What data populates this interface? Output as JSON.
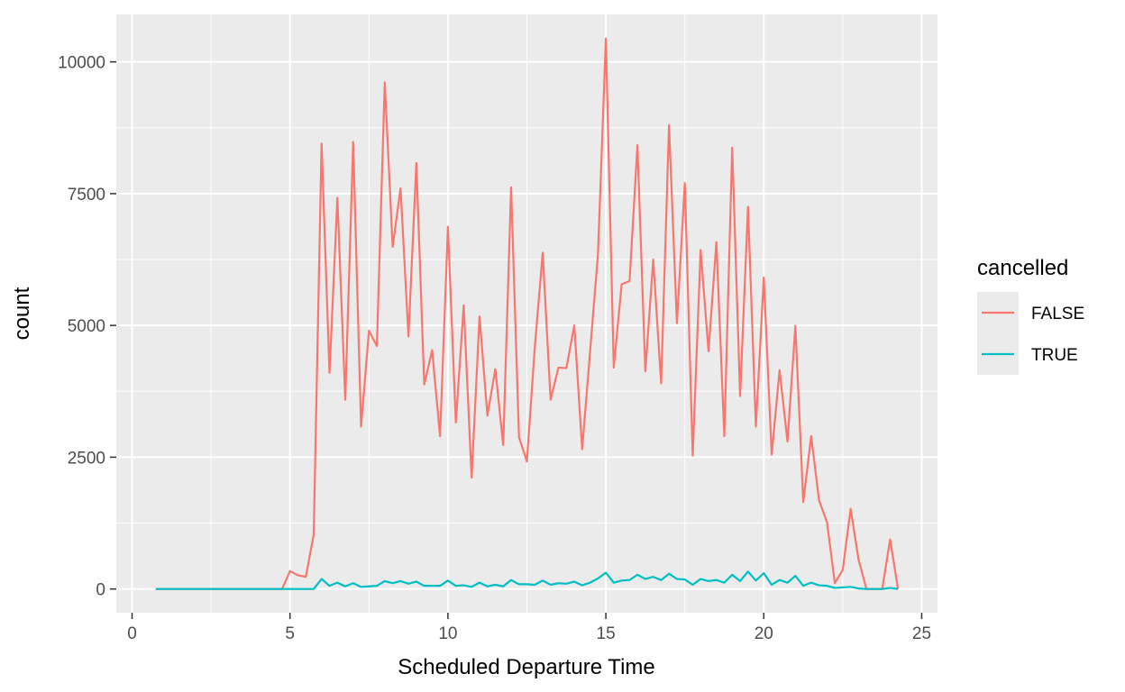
{
  "chart_data": {
    "type": "line",
    "xlabel": "Scheduled Departure Time",
    "ylabel": "count",
    "xlim": [
      -0.5,
      25.5
    ],
    "ylim": [
      -450,
      10900
    ],
    "x_ticks": [
      0,
      5,
      10,
      15,
      20,
      25
    ],
    "x_tick_labels": [
      "0",
      "5",
      "10",
      "15",
      "20",
      "25"
    ],
    "y_ticks": [
      0,
      2500,
      5000,
      7500,
      10000
    ],
    "y_tick_labels": [
      "0",
      "2500",
      "5000",
      "7500",
      "10000"
    ],
    "grid": true,
    "legend": {
      "title": "cancelled",
      "position": "right"
    },
    "series": [
      {
        "name": "FALSE",
        "color": "#F8766D",
        "points": [
          [
            0.75,
            0
          ],
          [
            1.0,
            0
          ],
          [
            1.25,
            0
          ],
          [
            1.5,
            0
          ],
          [
            1.75,
            0
          ],
          [
            2.0,
            0
          ],
          [
            2.25,
            0
          ],
          [
            2.5,
            0
          ],
          [
            2.75,
            0
          ],
          [
            3.0,
            0
          ],
          [
            3.25,
            0
          ],
          [
            3.5,
            0
          ],
          [
            3.75,
            0
          ],
          [
            4.0,
            0
          ],
          [
            4.25,
            0
          ],
          [
            4.5,
            0
          ],
          [
            4.75,
            0
          ],
          [
            5.0,
            340
          ],
          [
            5.25,
            260
          ],
          [
            5.5,
            230
          ],
          [
            5.75,
            1030
          ],
          [
            6.0,
            8450
          ],
          [
            6.25,
            4100
          ],
          [
            6.5,
            7420
          ],
          [
            6.75,
            3590
          ],
          [
            7.0,
            8480
          ],
          [
            7.25,
            3080
          ],
          [
            7.5,
            4900
          ],
          [
            7.75,
            4610
          ],
          [
            8.0,
            9610
          ],
          [
            8.25,
            6490
          ],
          [
            8.5,
            7600
          ],
          [
            8.75,
            4790
          ],
          [
            9.0,
            8080
          ],
          [
            9.25,
            3880
          ],
          [
            9.5,
            4530
          ],
          [
            9.75,
            2900
          ],
          [
            10.0,
            6870
          ],
          [
            10.25,
            3160
          ],
          [
            10.5,
            5380
          ],
          [
            10.75,
            2110
          ],
          [
            11.0,
            5170
          ],
          [
            11.25,
            3290
          ],
          [
            11.5,
            4170
          ],
          [
            11.75,
            2730
          ],
          [
            12.0,
            7620
          ],
          [
            12.25,
            2880
          ],
          [
            12.5,
            2420
          ],
          [
            12.75,
            4580
          ],
          [
            13.0,
            6380
          ],
          [
            13.25,
            3590
          ],
          [
            13.5,
            4200
          ],
          [
            13.75,
            4190
          ],
          [
            14.0,
            5000
          ],
          [
            14.25,
            2650
          ],
          [
            14.5,
            4500
          ],
          [
            14.75,
            6350
          ],
          [
            15.0,
            10440
          ],
          [
            15.25,
            4200
          ],
          [
            15.5,
            5780
          ],
          [
            15.75,
            5840
          ],
          [
            16.0,
            8420
          ],
          [
            16.25,
            4130
          ],
          [
            16.5,
            6250
          ],
          [
            16.75,
            3900
          ],
          [
            17.0,
            8800
          ],
          [
            17.25,
            5040
          ],
          [
            17.5,
            7700
          ],
          [
            17.75,
            2530
          ],
          [
            18.0,
            6430
          ],
          [
            18.25,
            4510
          ],
          [
            18.5,
            6580
          ],
          [
            18.75,
            2900
          ],
          [
            19.0,
            8370
          ],
          [
            19.25,
            3660
          ],
          [
            19.5,
            7250
          ],
          [
            19.75,
            3080
          ],
          [
            20.0,
            5910
          ],
          [
            20.25,
            2550
          ],
          [
            20.5,
            4150
          ],
          [
            20.75,
            2800
          ],
          [
            21.0,
            4990
          ],
          [
            21.25,
            1650
          ],
          [
            21.5,
            2900
          ],
          [
            21.75,
            1680
          ],
          [
            22.0,
            1270
          ],
          [
            22.25,
            110
          ],
          [
            22.5,
            360
          ],
          [
            22.75,
            1520
          ],
          [
            23.0,
            560
          ],
          [
            23.25,
            0
          ],
          [
            23.5,
            0
          ],
          [
            23.75,
            0
          ],
          [
            24.0,
            940
          ],
          [
            24.25,
            0
          ]
        ]
      },
      {
        "name": "TRUE",
        "color": "#00BFC4",
        "points": [
          [
            0.75,
            0
          ],
          [
            1.0,
            0
          ],
          [
            1.25,
            0
          ],
          [
            1.5,
            0
          ],
          [
            1.75,
            0
          ],
          [
            2.0,
            0
          ],
          [
            2.25,
            0
          ],
          [
            2.5,
            0
          ],
          [
            2.75,
            0
          ],
          [
            3.0,
            0
          ],
          [
            3.25,
            0
          ],
          [
            3.5,
            0
          ],
          [
            3.75,
            0
          ],
          [
            4.0,
            0
          ],
          [
            4.25,
            0
          ],
          [
            4.5,
            0
          ],
          [
            4.75,
            0
          ],
          [
            5.0,
            0
          ],
          [
            5.25,
            0
          ],
          [
            5.5,
            0
          ],
          [
            5.75,
            0
          ],
          [
            6.0,
            190
          ],
          [
            6.25,
            60
          ],
          [
            6.5,
            120
          ],
          [
            6.75,
            50
          ],
          [
            7.0,
            110
          ],
          [
            7.25,
            40
          ],
          [
            7.5,
            50
          ],
          [
            7.75,
            60
          ],
          [
            8.0,
            150
          ],
          [
            8.25,
            110
          ],
          [
            8.5,
            150
          ],
          [
            8.75,
            100
          ],
          [
            9.0,
            140
          ],
          [
            9.25,
            60
          ],
          [
            9.5,
            60
          ],
          [
            9.75,
            60
          ],
          [
            10.0,
            160
          ],
          [
            10.25,
            60
          ],
          [
            10.5,
            70
          ],
          [
            10.75,
            40
          ],
          [
            11.0,
            120
          ],
          [
            11.25,
            50
          ],
          [
            11.5,
            80
          ],
          [
            11.75,
            50
          ],
          [
            12.0,
            170
          ],
          [
            12.25,
            90
          ],
          [
            12.5,
            90
          ],
          [
            12.75,
            80
          ],
          [
            13.0,
            160
          ],
          [
            13.25,
            80
          ],
          [
            13.5,
            110
          ],
          [
            13.75,
            100
          ],
          [
            14.0,
            140
          ],
          [
            14.25,
            70
          ],
          [
            14.5,
            120
          ],
          [
            14.75,
            200
          ],
          [
            15.0,
            310
          ],
          [
            15.25,
            120
          ],
          [
            15.5,
            160
          ],
          [
            15.75,
            170
          ],
          [
            16.0,
            270
          ],
          [
            16.25,
            190
          ],
          [
            16.5,
            230
          ],
          [
            16.75,
            170
          ],
          [
            17.0,
            290
          ],
          [
            17.25,
            190
          ],
          [
            17.5,
            180
          ],
          [
            17.75,
            80
          ],
          [
            18.0,
            190
          ],
          [
            18.25,
            150
          ],
          [
            18.5,
            170
          ],
          [
            18.75,
            120
          ],
          [
            19.0,
            270
          ],
          [
            19.25,
            150
          ],
          [
            19.5,
            330
          ],
          [
            19.75,
            160
          ],
          [
            20.0,
            300
          ],
          [
            20.25,
            80
          ],
          [
            20.5,
            170
          ],
          [
            20.75,
            120
          ],
          [
            21.0,
            250
          ],
          [
            21.25,
            60
          ],
          [
            21.5,
            120
          ],
          [
            21.75,
            70
          ],
          [
            22.0,
            60
          ],
          [
            22.25,
            20
          ],
          [
            22.5,
            30
          ],
          [
            22.75,
            40
          ],
          [
            23.0,
            10
          ],
          [
            23.25,
            0
          ],
          [
            23.5,
            0
          ],
          [
            23.75,
            0
          ],
          [
            24.0,
            20
          ],
          [
            24.25,
            0
          ]
        ]
      }
    ]
  }
}
